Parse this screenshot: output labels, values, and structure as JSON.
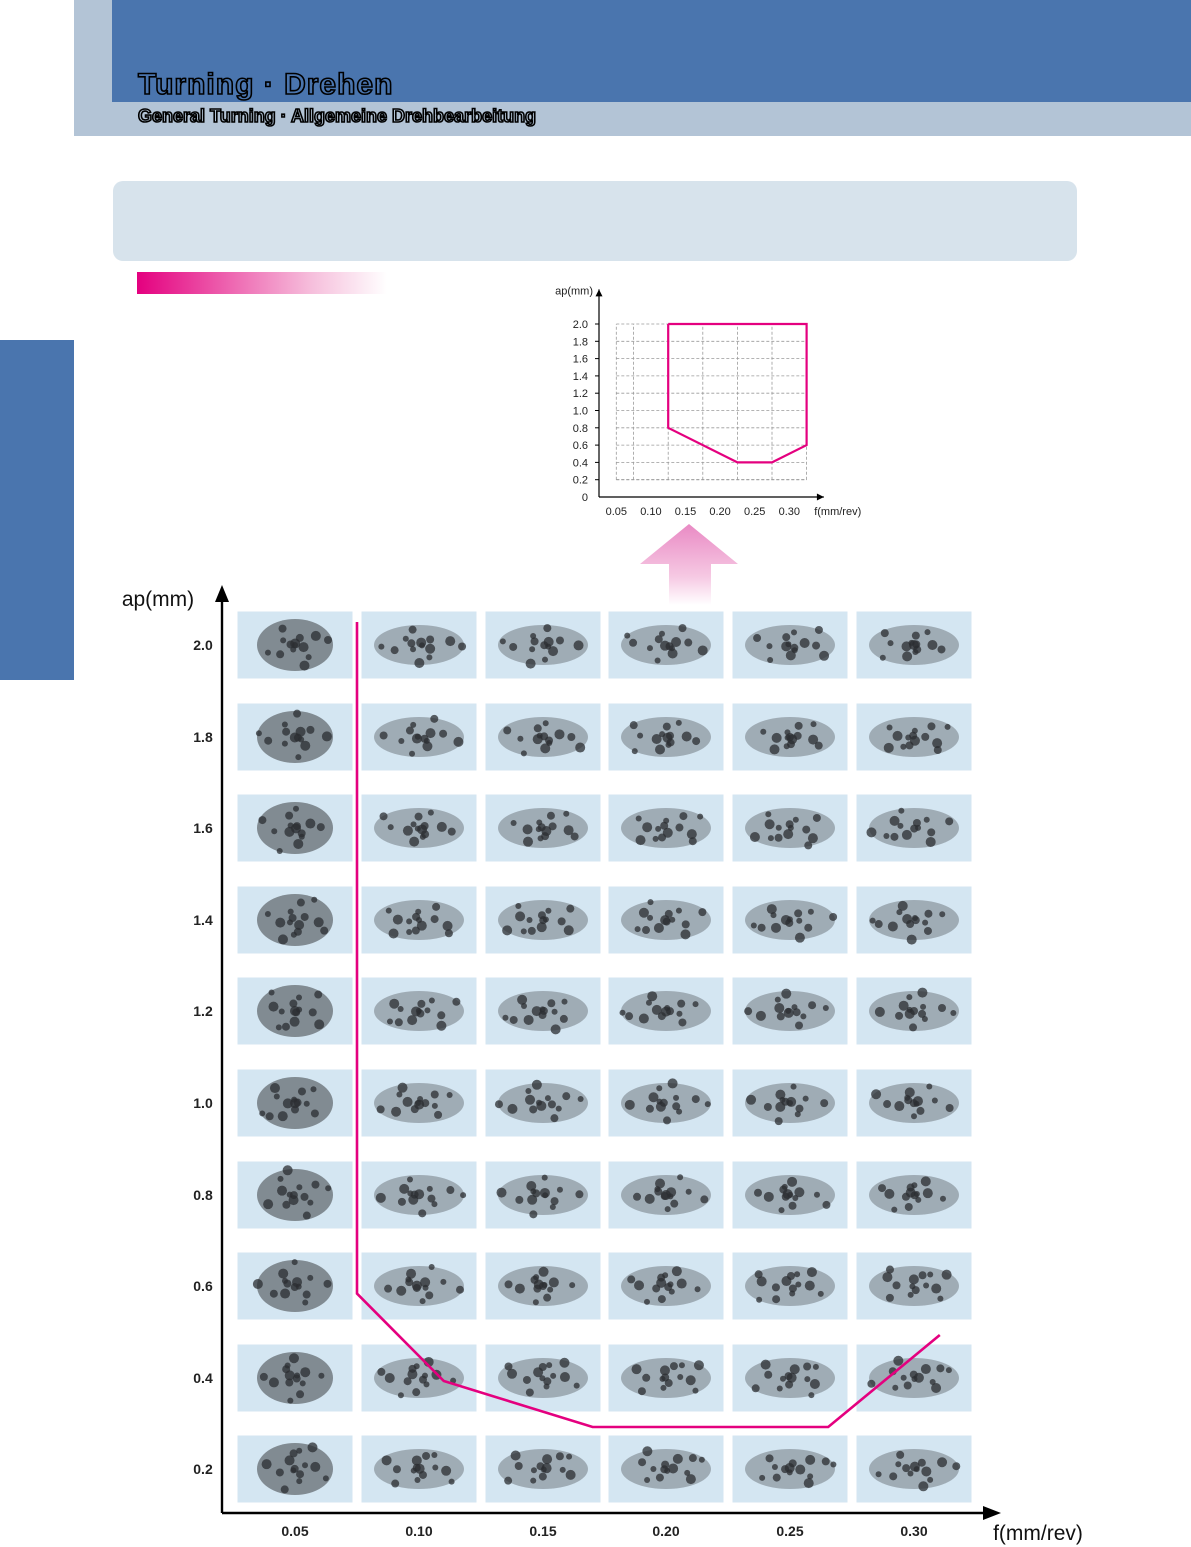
{
  "header": {
    "title": "Turning · Drehen",
    "subtitle": "General Turning · Allgemeine Drehbearbeitung"
  },
  "colors": {
    "header_blue": "#4a75ae",
    "header_light": "#b3c4d6",
    "info_box": "#d7e3ec",
    "accent_magenta": "#e4007f",
    "arrow_pink": "#f0a8d4",
    "photo_bg": "#d4e6f2"
  },
  "chart_data": [
    {
      "type": "line",
      "xlabel": "f(mm/rev)",
      "ylabel": "ap(mm)",
      "x_ticks": [
        "0.05",
        "0.10",
        "0.15",
        "0.20",
        "0.25",
        "0.30"
      ],
      "y_ticks": [
        "0",
        "0.2",
        "0.4",
        "0.6",
        "0.8",
        "1.0",
        "1.2",
        "1.4",
        "1.6",
        "1.8",
        "2.0"
      ],
      "xlim": [
        0.0,
        0.35
      ],
      "ylim": [
        0,
        2.0
      ],
      "grid": true,
      "series": [
        {
          "points": [
            {
              "x": 0.1,
              "y": 2.0
            },
            {
              "x": 0.1,
              "y": 0.8
            },
            {
              "x": 0.2,
              "y": 0.4
            },
            {
              "x": 0.25,
              "y": 0.4
            },
            {
              "x": 0.3,
              "y": 0.6
            },
            {
              "x": 0.3,
              "y": 2.0
            },
            {
              "x": 0.1,
              "y": 2.0
            }
          ],
          "color": "#e4007f"
        }
      ]
    },
    {
      "type": "table",
      "xlabel": "f(mm/rev)",
      "ylabel": "ap(mm)",
      "columns": [
        "0.05",
        "0.10",
        "0.15",
        "0.20",
        "0.25",
        "0.30"
      ],
      "rows": [
        "2.0",
        "1.8",
        "1.6",
        "1.4",
        "1.2",
        "1.0",
        "0.8",
        "0.6",
        "0.4",
        "0.2"
      ],
      "cell_content": "chip-photo",
      "boundary": {
        "color": "#e4007f",
        "points": [
          {
            "x": 0.075,
            "y": 2.05
          },
          {
            "x": 0.075,
            "y": 0.59
          },
          {
            "x": 0.11,
            "y": 0.4
          },
          {
            "x": 0.17,
            "y": 0.3
          },
          {
            "x": 0.265,
            "y": 0.3
          },
          {
            "x": 0.31,
            "y": 0.5
          }
        ]
      }
    }
  ]
}
